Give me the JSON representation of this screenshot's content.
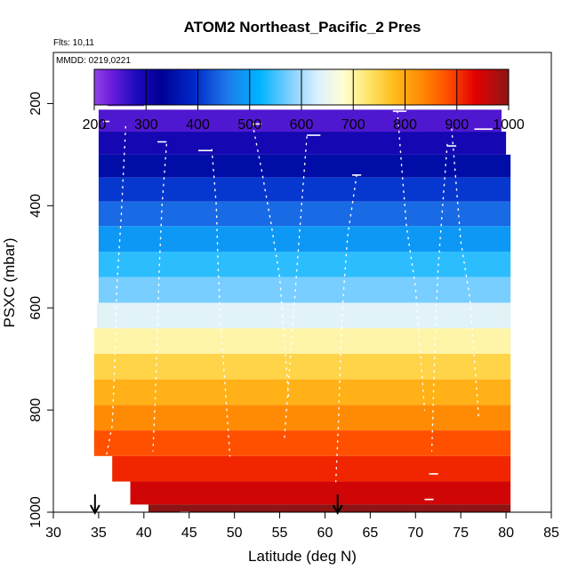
{
  "chart_data": {
    "type": "heatmap",
    "title": "ATOM2 Northeast_Pacific_2 Pres",
    "flights_label": "Flts: 10,11",
    "date_label": "MMDD: 0219,0221",
    "xlabel": "Latitude (deg N)",
    "ylabel": "PSXC (mbar)",
    "xlim": [
      30,
      85
    ],
    "ylim": [
      1000,
      100
    ],
    "x_ticks": [
      "30",
      "35",
      "40",
      "45",
      "50",
      "55",
      "60",
      "65",
      "70",
      "75",
      "80",
      "85"
    ],
    "y_ticks": [
      "200",
      "400",
      "600",
      "800",
      "1000"
    ],
    "colorbar": {
      "range": [
        200,
        1000
      ],
      "tick_labels": [
        "200",
        "300",
        "400",
        "500",
        "600",
        "700",
        "800",
        "900",
        "1000"
      ]
    },
    "arrows_latitude": [
      34.6,
      61.4
    ],
    "bands": [
      {
        "p_top": 165,
        "p_bot": 205,
        "x0": 36,
        "x1": 40,
        "value": 205
      },
      {
        "p_top": 212,
        "p_bot": 255,
        "x0": 35,
        "x1": 79.5,
        "value": 250
      },
      {
        "p_top": 255,
        "p_bot": 300,
        "x0": 35,
        "x1": 80,
        "value": 295
      },
      {
        "p_top": 300,
        "p_bot": 345,
        "x0": 35,
        "x1": 80.5,
        "value": 350
      },
      {
        "p_top": 345,
        "p_bot": 392,
        "x0": 35,
        "x1": 80.5,
        "value": 405
      },
      {
        "p_top": 392,
        "p_bot": 440,
        "x0": 35,
        "x1": 80.5,
        "value": 445
      },
      {
        "p_top": 440,
        "p_bot": 490,
        "x0": 35,
        "x1": 80.5,
        "value": 490
      },
      {
        "p_top": 490,
        "p_bot": 540,
        "x0": 35,
        "x1": 80.5,
        "value": 540
      },
      {
        "p_top": 540,
        "p_bot": 590,
        "x0": 35,
        "x1": 80.5,
        "value": 575
      },
      {
        "p_top": 590,
        "p_bot": 640,
        "x0": 34.8,
        "x1": 80.5,
        "value": 640
      },
      {
        "p_top": 640,
        "p_bot": 690,
        "x0": 34.5,
        "x1": 80.5,
        "value": 700
      },
      {
        "p_top": 690,
        "p_bot": 740,
        "x0": 34.5,
        "x1": 80.5,
        "value": 750
      },
      {
        "p_top": 740,
        "p_bot": 790,
        "x0": 34.5,
        "x1": 80.5,
        "value": 790
      },
      {
        "p_top": 790,
        "p_bot": 840,
        "x0": 34.5,
        "x1": 80.5,
        "value": 830
      },
      {
        "p_top": 840,
        "p_bot": 890,
        "x0": 34.5,
        "x1": 80.5,
        "value": 880
      },
      {
        "p_top": 890,
        "p_bot": 940,
        "x0": 36.5,
        "x1": 80.5,
        "value": 910
      },
      {
        "p_top": 940,
        "p_bot": 985,
        "x0": 38.5,
        "x1": 80.5,
        "value": 950
      },
      {
        "p_top": 985,
        "p_bot": 1000,
        "x0": 40.5,
        "x1": 80.5,
        "value": 1000
      }
    ],
    "profiles": [
      {
        "x": [
          35.2,
          36.5,
          36.8,
          37.0,
          37.5,
          38.0
        ],
        "p": [
          950,
          830,
          700,
          560,
          420,
          240
        ]
      },
      {
        "x": [
          42.5,
          42.0,
          41.7,
          41.5,
          41.3,
          41.0
        ],
        "p": [
          280,
          400,
          520,
          640,
          760,
          880
        ]
      },
      {
        "x": [
          47.5,
          48.0,
          48.2,
          48.5,
          49.0,
          49.5
        ],
        "p": [
          290,
          400,
          520,
          640,
          760,
          890
        ]
      },
      {
        "x": [
          52.0,
          53.0,
          54.0,
          55.0,
          55.5,
          56.0
        ],
        "p": [
          240,
          330,
          430,
          540,
          660,
          780
        ]
      },
      {
        "x": [
          58.0,
          57.5,
          57.0,
          56.5,
          56.0,
          55.5
        ],
        "p": [
          265,
          380,
          500,
          620,
          740,
          860
        ]
      },
      {
        "x": [
          63.5,
          62.5,
          62.0,
          61.7,
          61.5,
          61.2
        ],
        "p": [
          340,
          460,
          580,
          700,
          820,
          940
        ]
      },
      {
        "x": [
          68.0,
          68.5,
          69.0,
          70.0,
          70.5,
          71.0
        ],
        "p": [
          215,
          330,
          440,
          560,
          680,
          800
        ]
      },
      {
        "x": [
          73.5,
          73.0,
          72.5,
          72.2,
          72.0,
          71.8
        ],
        "p": [
          280,
          400,
          520,
          640,
          760,
          880
        ]
      },
      {
        "x": [
          74.0,
          74.5,
          75.0,
          76.0,
          76.5,
          77.0
        ],
        "p": [
          250,
          360,
          470,
          580,
          700,
          820
        ]
      }
    ],
    "flight_legs": [
      {
        "x0": 37.5,
        "x1": 40.0,
        "p": 198
      },
      {
        "x0": 35.5,
        "x1": 36.2,
        "p": 235
      },
      {
        "x0": 41.5,
        "x1": 42.5,
        "p": 275
      },
      {
        "x0": 46.0,
        "x1": 47.5,
        "p": 292
      },
      {
        "x0": 52.0,
        "x1": 53.0,
        "p": 240
      },
      {
        "x0": 58.0,
        "x1": 59.5,
        "p": 262
      },
      {
        "x0": 63.0,
        "x1": 64.0,
        "p": 340
      },
      {
        "x0": 67.5,
        "x1": 69.0,
        "p": 215
      },
      {
        "x0": 73.5,
        "x1": 74.5,
        "p": 283
      },
      {
        "x0": 76.5,
        "x1": 78.5,
        "p": 250
      },
      {
        "x0": 71.5,
        "x1": 72.5,
        "p": 925
      },
      {
        "x0": 44.0,
        "x1": 45.0,
        "p": 1000
      },
      {
        "x0": 71.0,
        "x1": 72.0,
        "p": 975
      }
    ]
  }
}
